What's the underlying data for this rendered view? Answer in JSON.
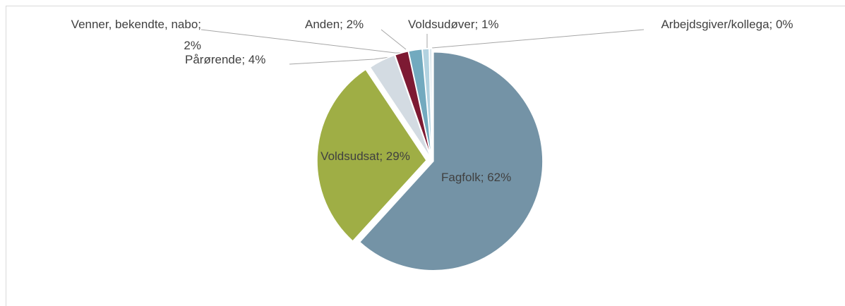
{
  "chart_data": {
    "type": "pie",
    "values": [
      62,
      29,
      4,
      2,
      2,
      1,
      0.4
    ],
    "value_labels": [
      "Fagfolk; 62%",
      "Voldsudsat; 29%",
      "Pårørende; 4%",
      "Venner, bekendte, nabo; 2%",
      "Anden; 2%",
      "Voldsudøver; 1%",
      "Arbejdsgiver/kollega; 0%"
    ],
    "colors": [
      "#7493a6",
      "#9fae45",
      "#d3dbe2",
      "#7d1a33",
      "#72aabf",
      "#b2d2e0",
      "#dce8ee"
    ]
  }
}
